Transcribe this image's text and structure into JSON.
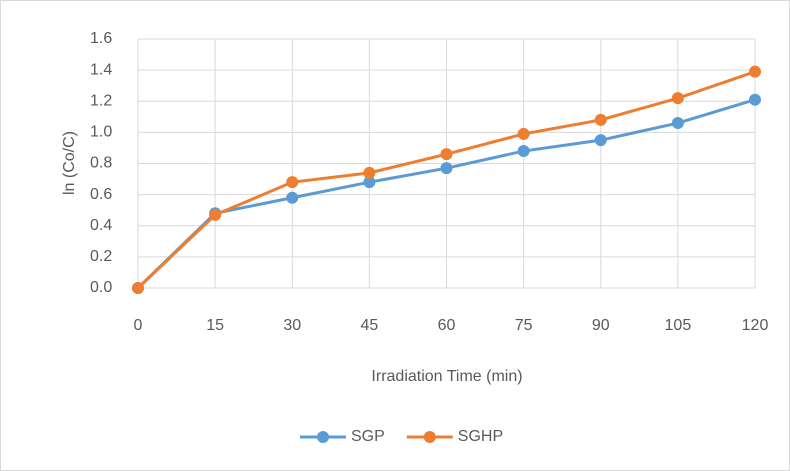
{
  "chart_data": {
    "type": "line",
    "x": [
      0,
      15,
      30,
      45,
      60,
      75,
      90,
      105,
      120
    ],
    "series": [
      {
        "name": "SGP",
        "color": "#5b9bd5",
        "values": [
          0,
          0.48,
          0.58,
          0.68,
          0.77,
          0.88,
          0.95,
          1.06,
          1.21
        ]
      },
      {
        "name": "SGHP",
        "color": "#ed7d31",
        "values": [
          0,
          0.47,
          0.68,
          0.74,
          0.86,
          0.99,
          1.08,
          1.22,
          1.39
        ]
      }
    ],
    "xlabel": "Irradiation Time (min)",
    "ylabel": "ln (Co/C)",
    "xlim": [
      0,
      120
    ],
    "xticks": [
      0,
      15,
      30,
      45,
      60,
      75,
      90,
      105,
      120
    ],
    "ylim": [
      0,
      1.6
    ],
    "yticks": [
      {
        "value": 0,
        "label": "0.0"
      },
      0.2,
      0.4,
      0.6,
      0.8,
      {
        "value": 1,
        "label": "1.0"
      },
      1.2,
      1.4,
      1.6
    ],
    "grid": true,
    "legend": "bottom"
  }
}
